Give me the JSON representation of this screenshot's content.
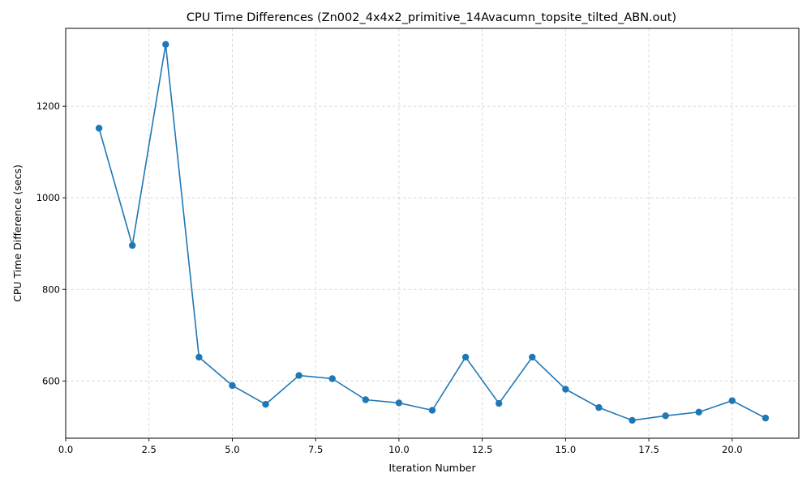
{
  "chart_data": {
    "type": "line",
    "title": "CPU Time Differences (Zn002_4x4x2_primitive_14Avacumn_topsite_tilted_ABN.out)",
    "xlabel": "Iteration Number",
    "ylabel": "CPU Time Difference (secs)",
    "xlim": [
      0,
      22
    ],
    "ylim": [
      475,
      1370
    ],
    "grid": true,
    "legend": "none",
    "x_ticks": [
      0,
      2.5,
      5,
      7.5,
      10,
      12.5,
      15,
      17.5,
      20
    ],
    "x_tick_labels": [
      "0.0",
      "2.5",
      "5.0",
      "7.5",
      "10.0",
      "12.5",
      "15.0",
      "17.5",
      "20.0"
    ],
    "y_ticks": [
      600,
      800,
      1000,
      1200
    ],
    "y_tick_labels": [
      "600",
      "800",
      "1000",
      "1200"
    ],
    "line_color": "#1f77b4",
    "series": [
      {
        "x": [
          1,
          2,
          3,
          4,
          5,
          6,
          7,
          8,
          9,
          10,
          11,
          12,
          13,
          14,
          15,
          16,
          17,
          18,
          19,
          20,
          21
        ],
        "values": [
          1152,
          896,
          1335,
          652,
          590,
          549,
          612,
          605,
          559,
          552,
          536,
          652,
          551,
          652,
          582,
          542,
          514,
          524,
          532,
          557,
          519
        ]
      }
    ]
  }
}
